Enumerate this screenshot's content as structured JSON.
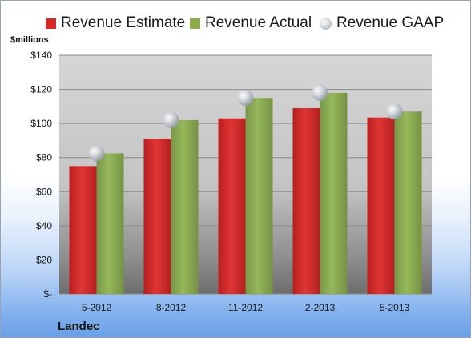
{
  "chart_data": {
    "type": "bar",
    "title": "",
    "ylabel": "$millions",
    "xlabel": "",
    "categories": [
      "5-2012",
      "8-2012",
      "11-2012",
      "2-2013",
      "5-2013"
    ],
    "series": [
      {
        "name": "Revenue Estimate",
        "kind": "bar",
        "color": "#d42a2a",
        "values": [
          75,
          91,
          103,
          109,
          103.5
        ]
      },
      {
        "name": "Revenue Actual",
        "kind": "bar",
        "color": "#8bab4c",
        "values": [
          82.5,
          102,
          115,
          118,
          107
        ]
      },
      {
        "name": "Revenue GAAP",
        "kind": "marker",
        "color": "#c8ccd2",
        "values": [
          82.5,
          102,
          115,
          118,
          107
        ]
      }
    ],
    "ylim": [
      0,
      140
    ],
    "yticks": [
      0,
      20,
      40,
      60,
      80,
      100,
      120,
      140
    ],
    "ytick_labels": [
      "$-",
      "$20",
      "$40",
      "$60",
      "$80",
      "$100",
      "$120",
      "$140"
    ],
    "grid": true,
    "legend": "top"
  },
  "footer": {
    "company": "Landec"
  }
}
